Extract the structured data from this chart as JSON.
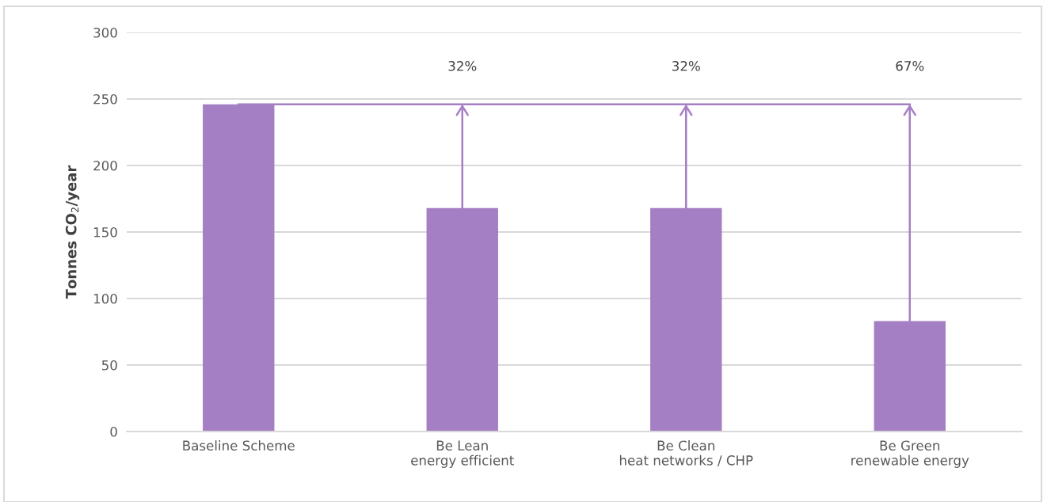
{
  "chart_data": {
    "type": "bar",
    "categories": [
      "Baseline Scheme",
      "Be Lean\nenergy efficient",
      "Be Clean\nheat networks / CHP",
      "Be Green\nrenewable energy"
    ],
    "values": [
      246,
      168,
      168,
      83
    ],
    "color": "#a57fc4",
    "ylabel": "Tonnes CO$_{2}$/year",
    "ylim": [
      0,
      300
    ],
    "yticks": [
      0,
      50,
      100,
      150,
      200,
      250,
      300
    ],
    "grid": "y",
    "ref_lines": [
      {
        "axis": "y",
        "value": 246,
        "color": "#a57fc4"
      }
    ],
    "annotations": [
      "32%",
      "32%",
      "67%"
    ]
  }
}
